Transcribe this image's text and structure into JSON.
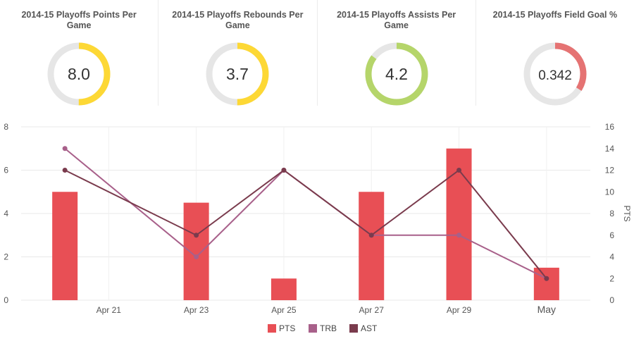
{
  "cards": [
    {
      "title": "2014-15 Playoffs Points Per Game",
      "value": "8.0",
      "fraction": 0.5,
      "color": "#fdd835"
    },
    {
      "title": "2014-15 Playoffs Rebounds Per Game",
      "value": "3.7",
      "fraction": 0.5,
      "color": "#fdd835"
    },
    {
      "title": "2014-15 Playoffs Assists Per Game",
      "value": "4.2",
      "fraction": 0.85,
      "color": "#b5d56a"
    },
    {
      "title": "2014-15 Playoffs Field Goal %",
      "value": "0.342",
      "fraction": 0.34,
      "color": "#e57373"
    }
  ],
  "chart_data": {
    "type": "bar",
    "x_tick_labels": [
      "Apr 21",
      "Apr 23",
      "Apr 25",
      "Apr 27",
      "Apr 29",
      "May"
    ],
    "x_ticks": [
      "2015-04-21",
      "2015-04-23",
      "2015-04-25",
      "2015-04-27",
      "2015-04-29",
      "2015-05-01"
    ],
    "x_range": [
      "2015-04-19",
      "2015-05-02"
    ],
    "left_axis": {
      "ylim": [
        0,
        8
      ],
      "ticks": [
        0,
        2,
        4,
        6,
        8
      ],
      "label": ""
    },
    "right_axis": {
      "ylim": [
        0,
        16
      ],
      "ticks": [
        0,
        2,
        4,
        6,
        8,
        10,
        12,
        14,
        16
      ],
      "label": "PTS"
    },
    "series": [
      {
        "name": "PTS",
        "type": "bar",
        "axis": "right",
        "color": "#e84f55",
        "x": [
          "2015-04-20",
          "2015-04-23",
          "2015-04-25",
          "2015-04-27",
          "2015-04-29",
          "2015-05-01"
        ],
        "values": [
          10,
          9,
          2,
          10,
          14,
          3
        ]
      },
      {
        "name": "TRB",
        "type": "line",
        "axis": "left",
        "color": "#a8608a",
        "x": [
          "2015-04-20",
          "2015-04-23",
          "2015-04-25",
          "2015-04-27",
          "2015-04-29",
          "2015-05-01"
        ],
        "values": [
          7,
          2,
          6,
          3,
          3,
          1
        ]
      },
      {
        "name": "AST",
        "type": "line",
        "axis": "left",
        "color": "#7a3b4d",
        "x": [
          "2015-04-20",
          "2015-04-23",
          "2015-04-25",
          "2015-04-27",
          "2015-04-29",
          "2015-05-01"
        ],
        "values": [
          6,
          3,
          6,
          3,
          6,
          1
        ]
      }
    ],
    "legend_position": "bottom",
    "grid": true
  }
}
